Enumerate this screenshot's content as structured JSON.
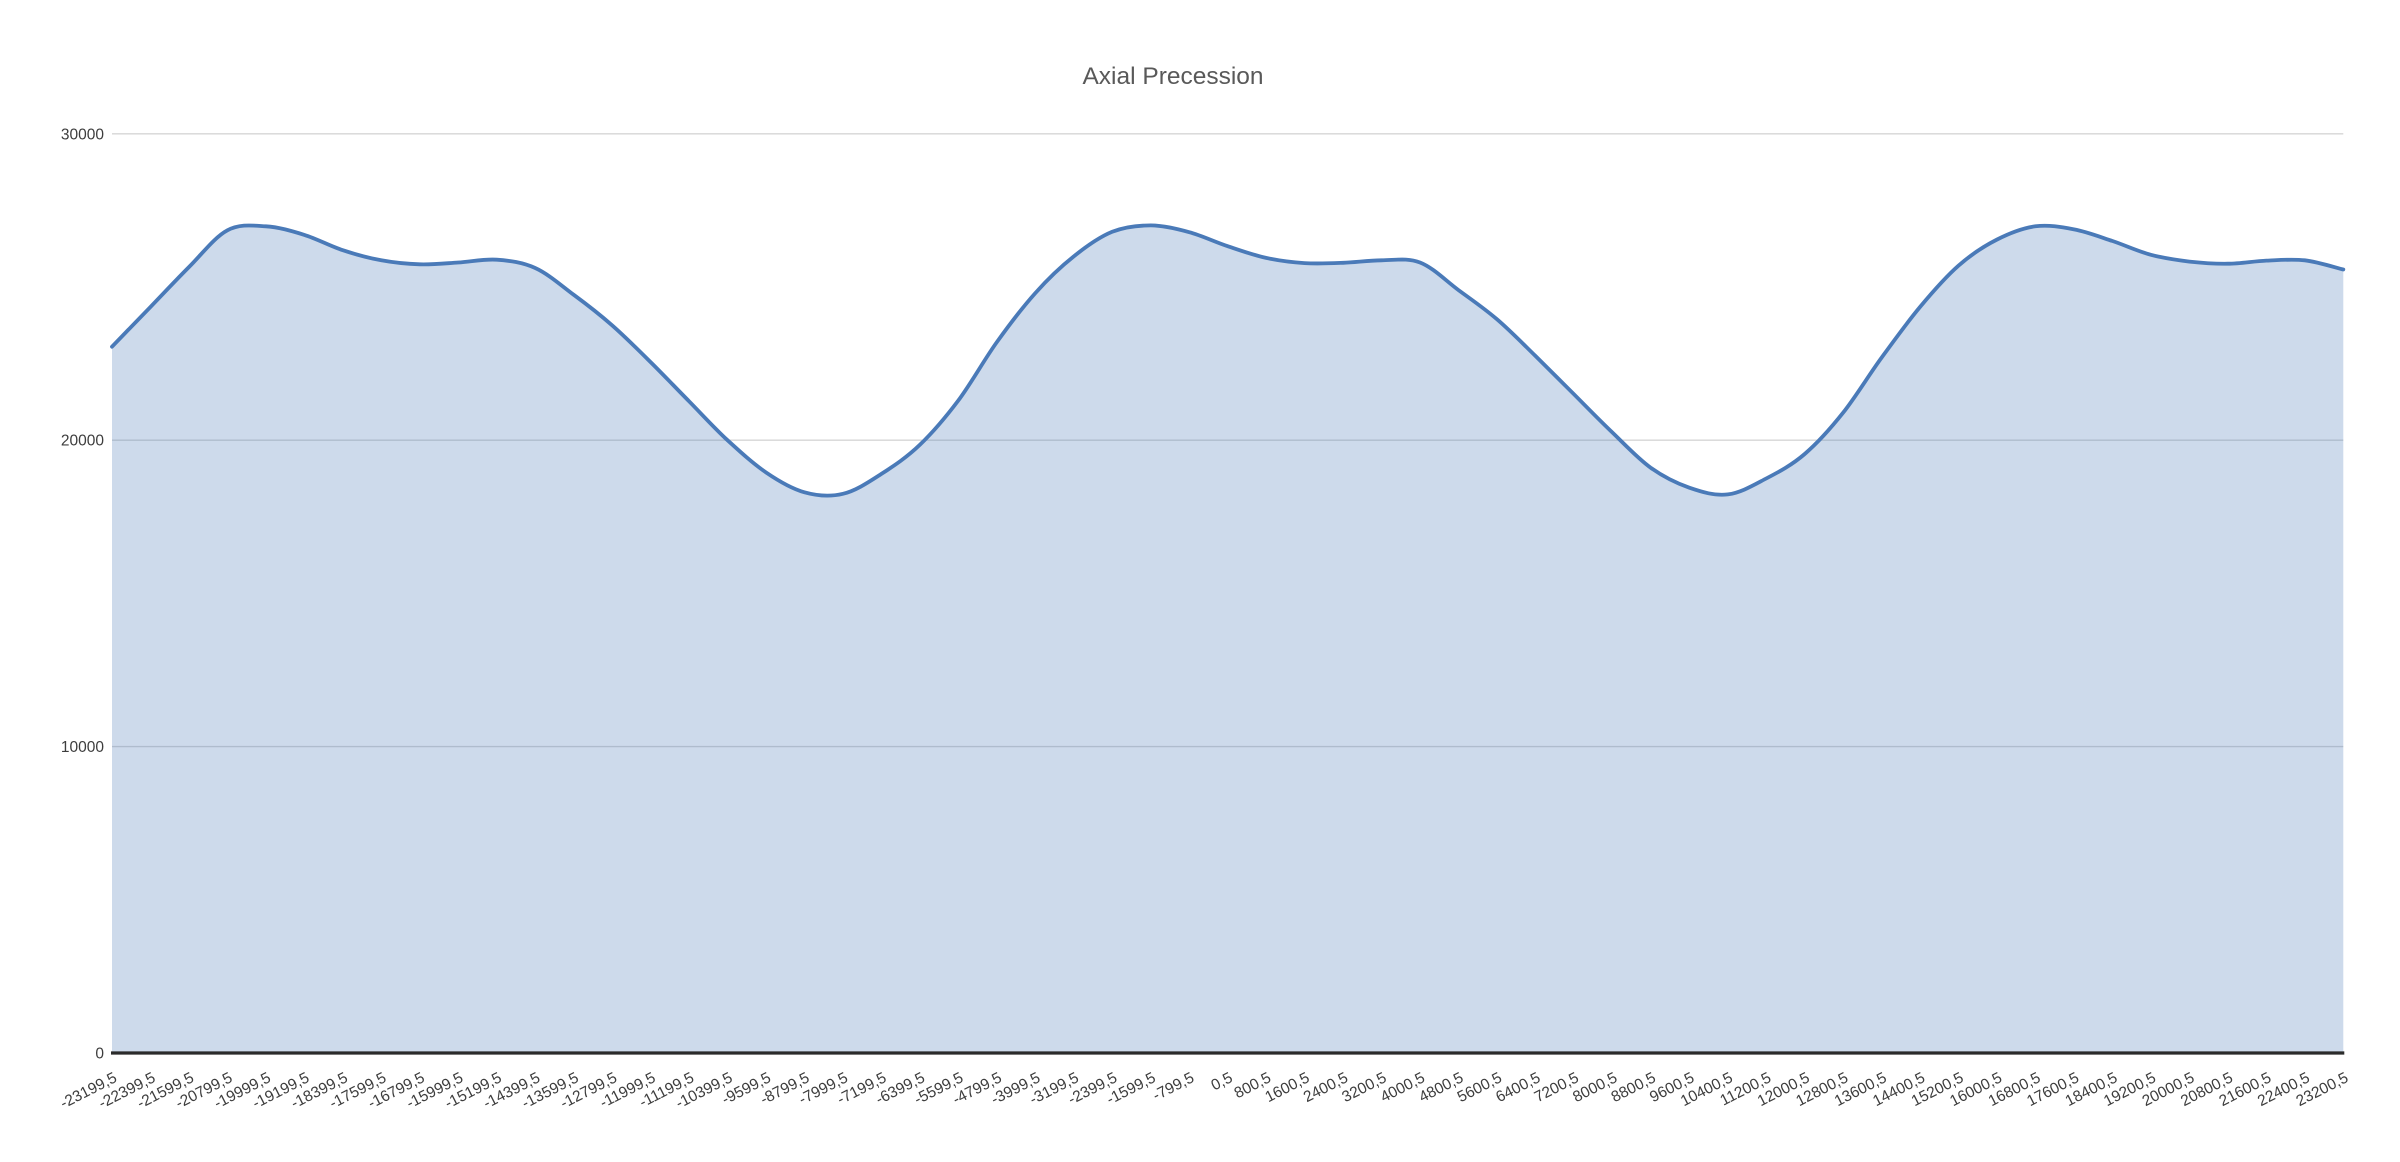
{
  "title": "Axial Precession",
  "chart_data": {
    "type": "area",
    "title": "Axial Precession",
    "smooth": true,
    "legend": "none",
    "grid": "horizontal",
    "xlabel": "",
    "ylabel": "",
    "ylim": [
      0,
      30000
    ],
    "y_tick_interval": 10000,
    "y_ticks": [
      {
        "label": "0",
        "value": 0
      },
      {
        "label": "10000",
        "value": 10000
      },
      {
        "label": "20000",
        "value": 20000
      },
      {
        "label": "30000",
        "value": 30000
      }
    ],
    "categories": [
      "-23199,5",
      "-22399,5",
      "-21599,5",
      "-20799,5",
      "-19999,5",
      "-19199,5",
      "-18399,5",
      "-17599,5",
      "-16799,5",
      "-15999,5",
      "-15199,5",
      "-14399,5",
      "-13599,5",
      "-12799,5",
      "-11999,5",
      "-11199,5",
      "-10399,5",
      "-9599,5",
      "-8799,5",
      "-7999,5",
      "-7199,5",
      "-6399,5",
      "-5599,5",
      "-4799,5",
      "-3999,5",
      "-3199,5",
      "-2399,5",
      "-1599,5",
      "-799,5",
      "0,5",
      "800,5",
      "1600,5",
      "2400,5",
      "3200,5",
      "4000,5",
      "4800,5",
      "5600,5",
      "6400,5",
      "7200,5",
      "8000,5",
      "8800,5",
      "9600,5",
      "10400,5",
      "11200,5",
      "12000,5",
      "12800,5",
      "13600,5",
      "14400,5",
      "15200,5",
      "16000,5",
      "16800,5",
      "17600,5",
      "18400,5",
      "19200,5",
      "20000,5",
      "20800,5",
      "21600,5",
      "22400,5",
      "23200,5"
    ],
    "values": [
      23050,
      24350,
      25650,
      26850,
      26980,
      26700,
      26200,
      25870,
      25740,
      25800,
      25890,
      25620,
      24750,
      23750,
      22550,
      21270,
      20000,
      18950,
      18300,
      18250,
      18900,
      19850,
      21300,
      23200,
      24800,
      26000,
      26800,
      27010,
      26790,
      26330,
      25950,
      25780,
      25790,
      25870,
      25800,
      24900,
      23950,
      22750,
      21500,
      20250,
      19100,
      18450,
      18230,
      18750,
      19550,
      20900,
      22700,
      24350,
      25700,
      26550,
      26980,
      26880,
      26500,
      26050,
      25830,
      25760,
      25860,
      25870,
      25570
    ]
  },
  "style": {
    "background": "#ffffff",
    "line_color": "#4a7ab8",
    "fill_color": "rgba(74,122,184,0.28)",
    "gridline_color": "#d6d6d6",
    "axis_line_color": "#2b2b2b",
    "tick_label_color": "#3d3d3d",
    "title_color": "#595959"
  }
}
